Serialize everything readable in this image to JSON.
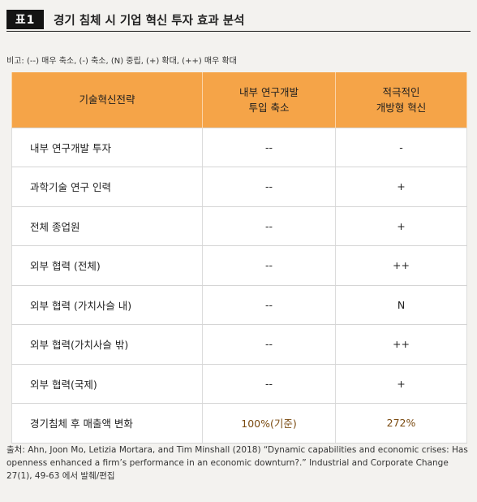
{
  "header": {
    "badge": "표1",
    "title": "경기 침체 시 기업 혁신 투자 효과 분석"
  },
  "legend": "비고: (--) 매우 축소, (-) 축소, (N) 중립, (+) 확대, (++) 매우 확대",
  "table": {
    "columns": [
      {
        "lines": [
          "기술혁신전략"
        ]
      },
      {
        "lines": [
          "내부 연구개발",
          "투입 축소"
        ]
      },
      {
        "lines": [
          "적극적인",
          "개방형 혁신"
        ]
      }
    ],
    "rows": [
      {
        "label": "내부 연구개발 투자",
        "col2": "--",
        "col3": "-"
      },
      {
        "label": "과학기술 연구 인력",
        "col2": "--",
        "col3": "+"
      },
      {
        "label": "전체 종업원",
        "col2": "--",
        "col3": "+"
      },
      {
        "label": "외부 협력 (전체)",
        "col2": "--",
        "col3": "++"
      },
      {
        "label": "외부 협력 (가치사슬 내)",
        "col2": "--",
        "col3": "N"
      },
      {
        "label": "외부 협력(가치사슬 밖)",
        "col2": "--",
        "col3": "++"
      },
      {
        "label": "외부 협력(국제)",
        "col2": "--",
        "col3": "+"
      },
      {
        "label": "경기침체 후 매출액 변화",
        "col2": "100%(기준)",
        "col3": "272%"
      }
    ]
  },
  "source": "출처: Ahn, Joon Mo, Letizia Mortara, and Tim Minshall (2018) “Dynamic capabilities and economic crises: Has openness enhanced a firm’s performance in an economic downturn?.” Industrial and Corporate Change 27(1), 49-63 에서 발췌/편집",
  "colors": {
    "header_fill": "#f5a448",
    "badge_fill": "#141414",
    "highlight_text": "#7a4a10"
  }
}
